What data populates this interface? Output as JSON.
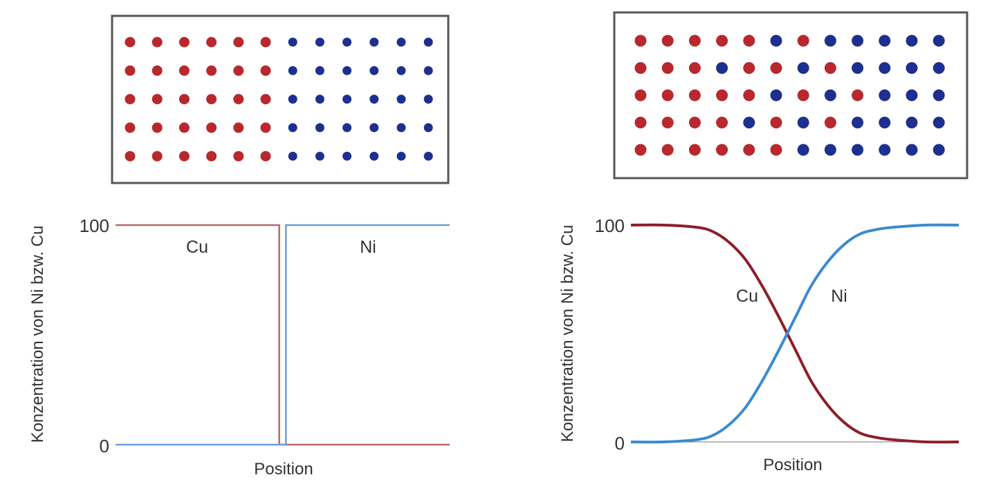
{
  "colors": {
    "cu": "#b8282c",
    "ni": "#1d2f8f",
    "cu_curve": "#8c1e2a",
    "ni_curve": "#3b8ad0",
    "frame": "#555555"
  },
  "panels": [
    {
      "id": "before",
      "lattice": {
        "rows": [
          [
            "Cu",
            "Cu",
            "Cu",
            "Cu",
            "Cu",
            "Cu",
            "Ni",
            "Ni",
            "Ni",
            "Ni",
            "Ni",
            "Ni"
          ],
          [
            "Cu",
            "Cu",
            "Cu",
            "Cu",
            "Cu",
            "Cu",
            "Ni",
            "Ni",
            "Ni",
            "Ni",
            "Ni",
            "Ni"
          ],
          [
            "Cu",
            "Cu",
            "Cu",
            "Cu",
            "Cu",
            "Cu",
            "Ni",
            "Ni",
            "Ni",
            "Ni",
            "Ni",
            "Ni"
          ],
          [
            "Cu",
            "Cu",
            "Cu",
            "Cu",
            "Cu",
            "Cu",
            "Ni",
            "Ni",
            "Ni",
            "Ni",
            "Ni",
            "Ni"
          ],
          [
            "Cu",
            "Cu",
            "Cu",
            "Cu",
            "Cu",
            "Cu",
            "Ni",
            "Ni",
            "Ni",
            "Ni",
            "Ni",
            "Ni"
          ]
        ]
      },
      "chart_data": {
        "type": "line",
        "ylabel": "Konzentration von Ni bzw. Cu",
        "xlabel": "Position",
        "yticks": [
          "0",
          "100"
        ],
        "ylim": [
          0,
          100
        ],
        "xlim": [
          0,
          1
        ],
        "series": [
          {
            "name": "Cu",
            "x": [
              0,
              0.49,
              0.49,
              1
            ],
            "y": [
              100,
              100,
              0,
              0
            ]
          },
          {
            "name": "Ni",
            "x": [
              0,
              0.51,
              0.51,
              1
            ],
            "y": [
              0,
              0,
              100,
              100
            ]
          }
        ]
      }
    },
    {
      "id": "after",
      "lattice": {
        "rows": [
          [
            "Cu",
            "Cu",
            "Cu",
            "Cu",
            "Cu",
            "Ni",
            "Cu",
            "Ni",
            "Ni",
            "Ni",
            "Ni",
            "Ni"
          ],
          [
            "Cu",
            "Cu",
            "Cu",
            "Ni",
            "Cu",
            "Cu",
            "Ni",
            "Cu",
            "Ni",
            "Ni",
            "Ni",
            "Ni"
          ],
          [
            "Cu",
            "Cu",
            "Cu",
            "Cu",
            "Cu",
            "Ni",
            "Cu",
            "Ni",
            "Cu",
            "Ni",
            "Ni",
            "Ni"
          ],
          [
            "Cu",
            "Cu",
            "Cu",
            "Cu",
            "Ni",
            "Cu",
            "Ni",
            "Cu",
            "Ni",
            "Ni",
            "Ni",
            "Ni"
          ],
          [
            "Cu",
            "Cu",
            "Cu",
            "Cu",
            "Cu",
            "Cu",
            "Ni",
            "Ni",
            "Ni",
            "Ni",
            "Ni",
            "Ni"
          ]
        ]
      },
      "chart_data": {
        "type": "line",
        "ylabel": "Konzentration von Ni bzw. Cu",
        "xlabel": "Position",
        "yticks": [
          "0",
          "100"
        ],
        "ylim": [
          0,
          100
        ],
        "xlim": [
          0,
          1
        ],
        "series": [
          {
            "name": "Cu",
            "x": [
              0,
              0.1,
              0.2,
              0.25,
              0.3,
              0.35,
              0.4,
              0.45,
              0.5,
              0.55,
              0.6,
              0.65,
              0.7,
              0.75,
              0.8,
              0.9,
              1
            ],
            "y": [
              100,
              100,
              99,
              97,
              92,
              84,
              72,
              58,
              43,
              28,
              17,
              9,
              4,
              2,
              1,
              0,
              0
            ]
          },
          {
            "name": "Ni",
            "x": [
              0,
              0.1,
              0.2,
              0.25,
              0.3,
              0.35,
              0.4,
              0.45,
              0.5,
              0.55,
              0.6,
              0.65,
              0.7,
              0.75,
              0.8,
              0.9,
              1
            ],
            "y": [
              0,
              0,
              1,
              3,
              8,
              16,
              28,
              42,
              57,
              72,
              83,
              91,
              96,
              98,
              99,
              100,
              100
            ]
          }
        ]
      }
    }
  ]
}
